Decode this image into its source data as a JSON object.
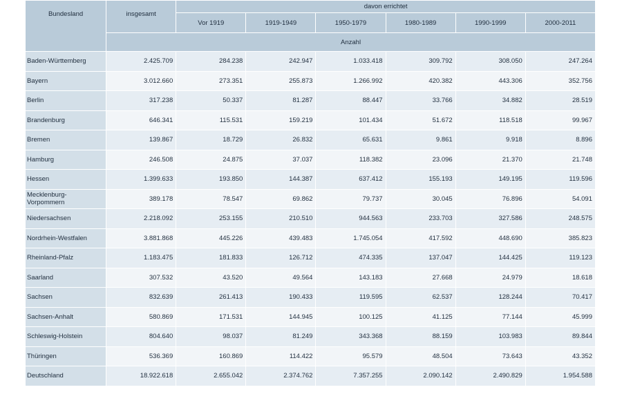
{
  "header": {
    "bundesland": "Bundesland",
    "insgesamt": "insgesamt",
    "davon": "davon errichtet",
    "periods": [
      "Vor 1919",
      "1919-1949",
      "1950-1979",
      "1980-1989",
      "1990-1999",
      "2000-2011"
    ],
    "unit": "Anzahl"
  },
  "rows": [
    {
      "name": "Baden-Württemberg",
      "values": [
        "2.425.709",
        "284.238",
        "242.947",
        "1.033.418",
        "309.792",
        "308.050",
        "247.264"
      ]
    },
    {
      "name": "Bayern",
      "values": [
        "3.012.660",
        "273.351",
        "255.873",
        "1.266.992",
        "420.382",
        "443.306",
        "352.756"
      ]
    },
    {
      "name": "Berlin",
      "values": [
        "317.238",
        "50.337",
        "81.287",
        "88.447",
        "33.766",
        "34.882",
        "28.519"
      ]
    },
    {
      "name": "Brandenburg",
      "values": [
        "646.341",
        "115.531",
        "159.219",
        "101.434",
        "51.672",
        "118.518",
        "99.967"
      ]
    },
    {
      "name": "Bremen",
      "values": [
        "139.867",
        "18.729",
        "26.832",
        "65.631",
        "9.861",
        "9.918",
        "8.896"
      ]
    },
    {
      "name": "Hamburg",
      "values": [
        "246.508",
        "24.875",
        "37.037",
        "118.382",
        "23.096",
        "21.370",
        "21.748"
      ]
    },
    {
      "name": "Hessen",
      "values": [
        "1.399.633",
        "193.850",
        "144.387",
        "637.412",
        "155.193",
        "149.195",
        "119.596"
      ]
    },
    {
      "name": "Mecklenburg-Vorpommern",
      "values": [
        "389.178",
        "78.547",
        "69.862",
        "79.737",
        "30.045",
        "76.896",
        "54.091"
      ]
    },
    {
      "name": "Niedersachsen",
      "values": [
        "2.218.092",
        "253.155",
        "210.510",
        "944.563",
        "233.703",
        "327.586",
        "248.575"
      ]
    },
    {
      "name": "Nordrhein-Westfalen",
      "values": [
        "3.881.868",
        "445.226",
        "439.483",
        "1.745.054",
        "417.592",
        "448.690",
        "385.823"
      ]
    },
    {
      "name": "Rheinland-Pfalz",
      "values": [
        "1.183.475",
        "181.833",
        "126.712",
        "474.335",
        "137.047",
        "144.425",
        "119.123"
      ]
    },
    {
      "name": "Saarland",
      "values": [
        "307.532",
        "43.520",
        "49.564",
        "143.183",
        "27.668",
        "24.979",
        "18.618"
      ]
    },
    {
      "name": "Sachsen",
      "values": [
        "832.639",
        "261.413",
        "190.433",
        "119.595",
        "62.537",
        "128.244",
        "70.417"
      ]
    },
    {
      "name": "Sachsen-Anhalt",
      "values": [
        "580.869",
        "171.531",
        "144.945",
        "100.125",
        "41.125",
        "77.144",
        "45.999"
      ]
    },
    {
      "name": "Schleswig-Holstein",
      "values": [
        "804.640",
        "98.037",
        "81.249",
        "343.368",
        "88.159",
        "103.983",
        "89.844"
      ]
    },
    {
      "name": "Thüringen",
      "values": [
        "536.369",
        "160.869",
        "114.422",
        "95.579",
        "48.504",
        "73.643",
        "43.352"
      ]
    },
    {
      "name": "Deutschland",
      "values": [
        "18.922.618",
        "2.655.042",
        "2.374.762",
        "7.357.255",
        "2.090.142",
        "2.490.829",
        "1.954.588"
      ]
    }
  ]
}
